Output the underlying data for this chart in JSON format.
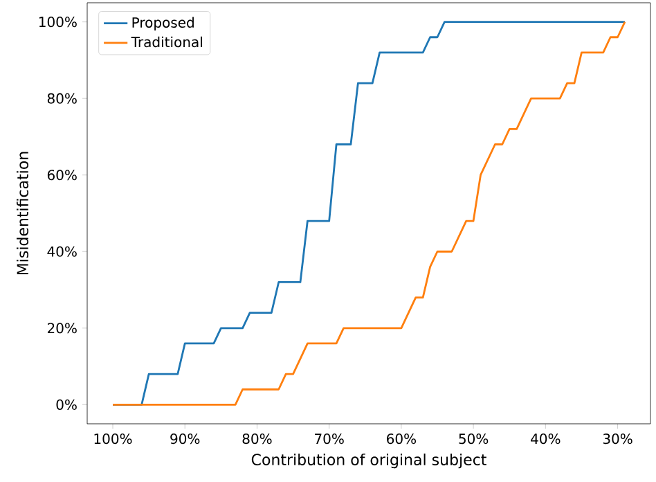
{
  "chart_data": {
    "type": "line",
    "xlabel": "Contribution of original subject",
    "ylabel": "Misidentification",
    "xlim": [
      103.55,
      25.45
    ],
    "ylim": [
      -5,
      105
    ],
    "xticks": [
      {
        "value": 100,
        "label": "100%"
      },
      {
        "value": 90,
        "label": "90%"
      },
      {
        "value": 80,
        "label": "80%"
      },
      {
        "value": 70,
        "label": "70%"
      },
      {
        "value": 60,
        "label": "60%"
      },
      {
        "value": 50,
        "label": "50%"
      },
      {
        "value": 40,
        "label": "40%"
      },
      {
        "value": 30,
        "label": "30%"
      }
    ],
    "yticks": [
      {
        "value": 0,
        "label": "0%"
      },
      {
        "value": 20,
        "label": "20%"
      },
      {
        "value": 40,
        "label": "40%"
      },
      {
        "value": 60,
        "label": "60%"
      },
      {
        "value": 80,
        "label": "80%"
      },
      {
        "value": 100,
        "label": "100%"
      }
    ],
    "legend": "top left",
    "grid": false,
    "marker": "none",
    "line_style": "solid",
    "series": [
      {
        "name": "Proposed",
        "color": "#1f77b4",
        "x": [
          100,
          96,
          95,
          91,
          90,
          86,
          85,
          82,
          81,
          78,
          77,
          74,
          73,
          70,
          69,
          67,
          66,
          64,
          63,
          57,
          56,
          55,
          54,
          29
        ],
        "values": [
          0,
          0,
          8,
          8,
          16,
          16,
          20,
          20,
          24,
          24,
          32,
          32,
          48,
          48,
          68,
          68,
          84,
          84,
          92,
          92,
          96,
          96,
          100,
          100
        ]
      },
      {
        "name": "Traditional",
        "color": "#ff7f0e",
        "x": [
          100,
          83,
          82,
          77,
          76,
          75,
          73,
          69,
          68,
          60,
          58,
          57,
          56,
          55,
          53,
          51,
          50,
          49,
          47,
          46,
          45,
          44,
          42,
          38,
          37,
          36,
          35,
          32,
          31,
          30,
          29
        ],
        "values": [
          0,
          0,
          4,
          4,
          8,
          8,
          16,
          16,
          20,
          20,
          28,
          28,
          36,
          40,
          40,
          48,
          48,
          60,
          68,
          68,
          72,
          72,
          80,
          80,
          84,
          84,
          92,
          92,
          96,
          96,
          100
        ]
      }
    ]
  }
}
